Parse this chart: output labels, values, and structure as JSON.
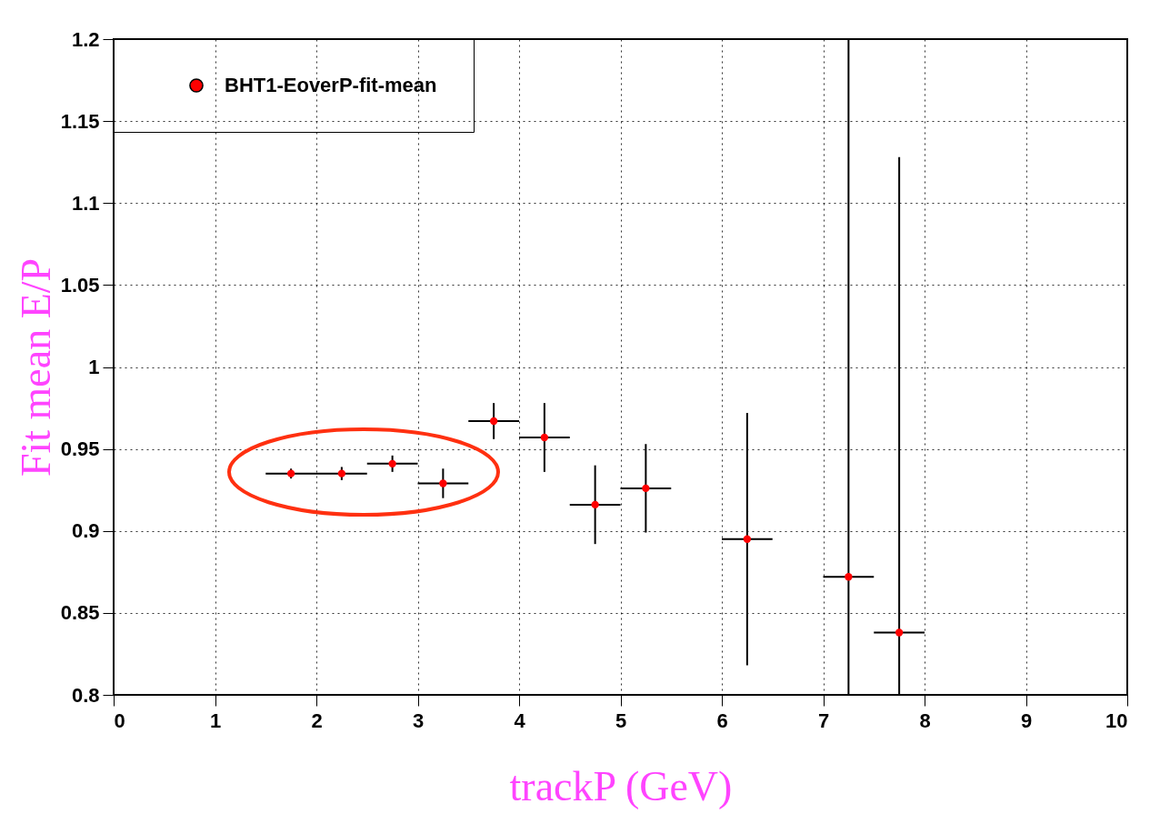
{
  "chart_data": {
    "type": "scatter",
    "xlabel": "trackP (GeV)",
    "ylabel": "Fit mean E/P",
    "marker": "circle",
    "grid": true,
    "legend": "top left",
    "xlim": [
      0,
      10
    ],
    "ylim": [
      0.8,
      1.2
    ],
    "xticks": [
      0,
      1,
      2,
      3,
      4,
      5,
      6,
      7,
      8,
      9,
      10
    ],
    "yticks": [
      0.8,
      0.85,
      0.9,
      0.95,
      1,
      1.05,
      1.1,
      1.15,
      1.2
    ],
    "x": [
      1.75,
      2.25,
      2.75,
      3.25,
      3.75,
      4.25,
      4.75,
      5.25,
      6.25,
      7.25,
      7.75
    ],
    "series": [
      {
        "name": "BHT1-EoverP-fit-mean",
        "color": "#ff0000",
        "values": [
          0.935,
          0.935,
          0.941,
          0.929,
          0.967,
          0.957,
          0.916,
          0.926,
          0.895,
          0.872,
          0.838
        ],
        "errors": [
          0.003,
          0.004,
          0.005,
          0.009,
          0.011,
          0.021,
          0.024,
          0.027,
          0.077,
          [
            0.8,
            1.2
          ],
          [
            0.8,
            1.128
          ]
        ],
        "xerrors": [
          0.25,
          0.25,
          0.25,
          0.25,
          0.25,
          0.25,
          0.25,
          0.25,
          0.25,
          0.25,
          0.25
        ]
      }
    ]
  }
}
